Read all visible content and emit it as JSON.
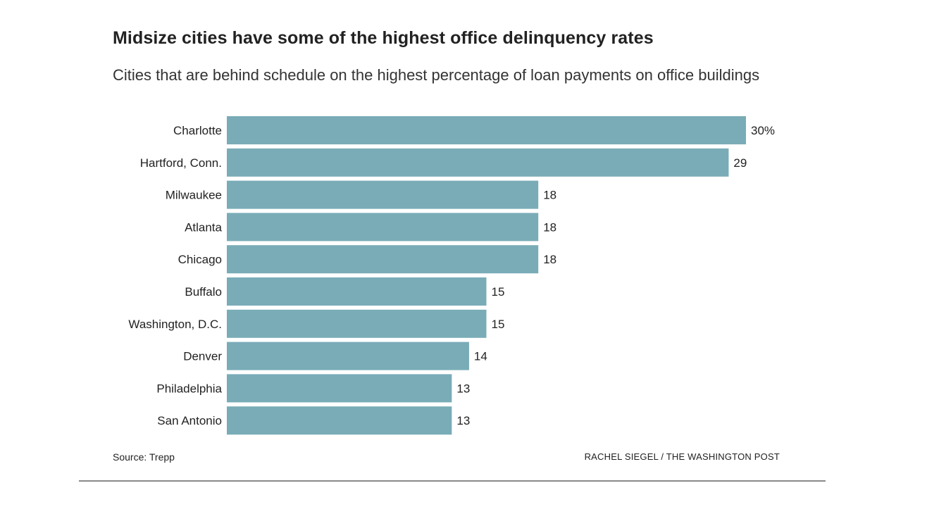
{
  "title": "Midsize cities have some of the highest office delinquency rates",
  "subtitle": "Cities that are behind schedule on the highest percentage of loan payments on office buildings",
  "source": "Source: Trepp",
  "credit": "RACHEL SIEGEL / THE WASHINGTON POST",
  "colors": {
    "bar": "#79acb7"
  },
  "chart_data": {
    "type": "bar",
    "orientation": "horizontal",
    "categories": [
      "Charlotte",
      "Hartford, Conn.",
      "Milwaukee",
      "Atlanta",
      "Chicago",
      "Buffalo",
      "Washington, D.C.",
      "Denver",
      "Philadelphia",
      "San Antonio"
    ],
    "values": [
      30,
      29,
      18,
      18,
      18,
      15,
      15,
      14,
      13,
      13
    ],
    "value_labels": [
      "30%",
      "29",
      "18",
      "18",
      "18",
      "15",
      "15",
      "14",
      "13",
      "13"
    ],
    "title": "Midsize cities have some of the highest office delinquency rates",
    "xlabel": "",
    "ylabel": "",
    "xlim": [
      0,
      30
    ],
    "grid": false
  }
}
